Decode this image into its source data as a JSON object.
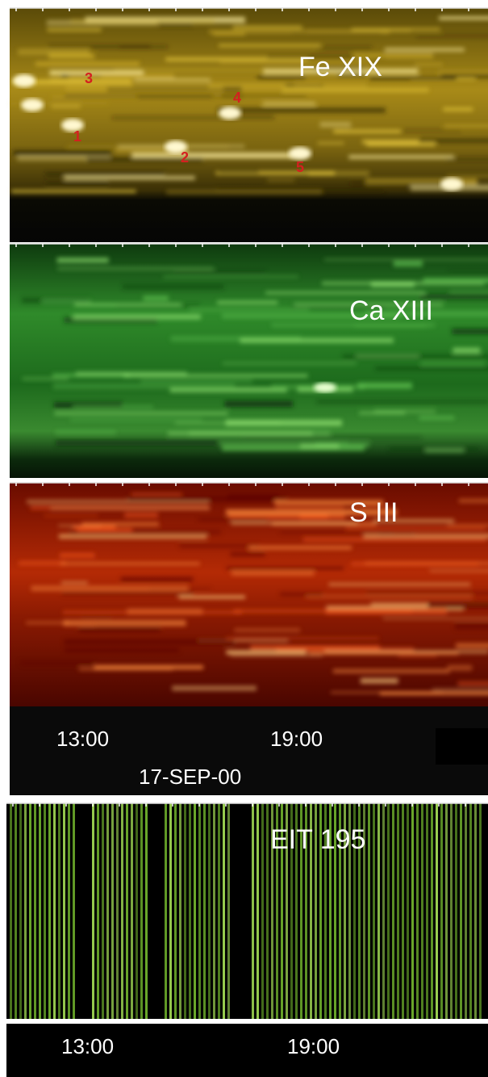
{
  "panels": [
    {
      "label": "Fe XIX",
      "markers": [
        "3",
        "4",
        "1",
        "2",
        "5"
      ]
    },
    {
      "label": "Ca XIII"
    },
    {
      "label": "S III"
    },
    {
      "label": "EIT 195"
    }
  ],
  "time_axis": {
    "ticks": [
      "13:00",
      "19:00"
    ],
    "date": "17-SEP-00"
  },
  "eit_time_axis": {
    "ticks": [
      "13:00",
      "19:00"
    ]
  }
}
